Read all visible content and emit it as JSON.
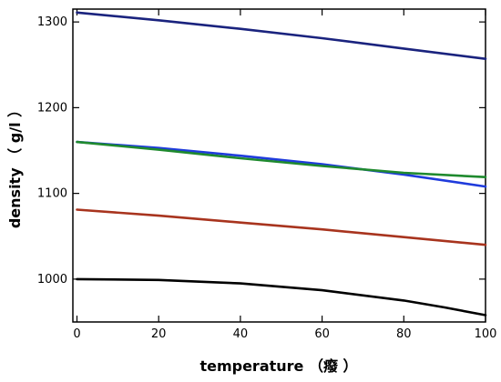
{
  "chart_data": {
    "type": "line",
    "title": "",
    "xlabel": "temperature （癈 ）",
    "ylabel": "density （ g/l ）",
    "xlim": [
      -1,
      100
    ],
    "ylim": [
      950,
      1315
    ],
    "xticks": [
      0,
      20,
      40,
      60,
      80,
      100
    ],
    "yticks": [
      1000,
      1100,
      1200,
      1300
    ],
    "grid": false,
    "legend": "none",
    "series": [
      {
        "color": "#1a237e",
        "x": [
          0,
          20,
          40,
          60,
          80,
          100
        ],
        "y": [
          1311,
          1302,
          1292,
          1281,
          1269,
          1257
        ]
      },
      {
        "color": "#1f3bdc",
        "x": [
          0,
          20,
          40,
          60,
          80,
          100
        ],
        "y": [
          1160,
          1153,
          1144,
          1134,
          1122,
          1108
        ]
      },
      {
        "color": "#1f8a2e",
        "x": [
          0,
          20,
          40,
          60,
          80,
          100
        ],
        "y": [
          1160,
          1151,
          1141,
          1132,
          1124,
          1119
        ]
      },
      {
        "color": "#a8341e",
        "x": [
          0,
          20,
          40,
          60,
          80,
          100
        ],
        "y": [
          1081,
          1074,
          1066,
          1058,
          1049,
          1040
        ]
      },
      {
        "color": "#000000",
        "x": [
          0,
          20,
          40,
          60,
          80,
          90,
          100
        ],
        "y": [
          1000,
          999,
          995,
          987,
          975,
          967,
          958
        ]
      }
    ]
  }
}
